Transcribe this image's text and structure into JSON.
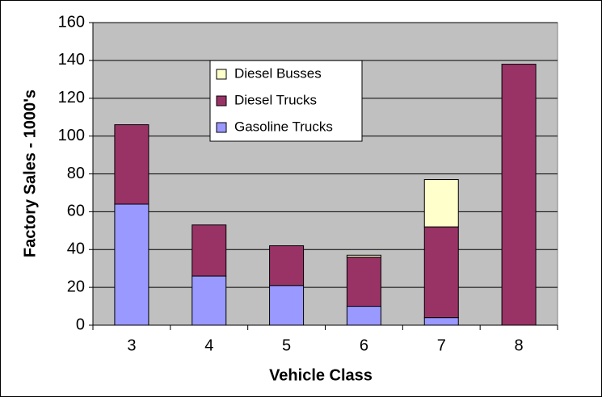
{
  "chart_data": {
    "type": "bar",
    "stacked": true,
    "xlabel": "Vehicle Class",
    "ylabel": "Factory Sales - 1000's",
    "categories": [
      "3",
      "4",
      "5",
      "6",
      "7",
      "8"
    ],
    "series": [
      {
        "name": "Gasoline Trucks",
        "color": "#9999ff",
        "values": [
          64,
          26,
          21,
          10,
          4,
          0
        ]
      },
      {
        "name": "Diesel Trucks",
        "color": "#993366",
        "values": [
          42,
          27,
          21,
          26,
          48,
          138
        ]
      },
      {
        "name": "Diesel Busses",
        "color": "#ffffcc",
        "values": [
          0,
          0,
          0,
          1,
          25,
          0
        ]
      }
    ],
    "ylim": [
      0,
      160
    ],
    "yticks": [
      0,
      20,
      40,
      60,
      80,
      100,
      120,
      140,
      160
    ],
    "grid": true
  }
}
